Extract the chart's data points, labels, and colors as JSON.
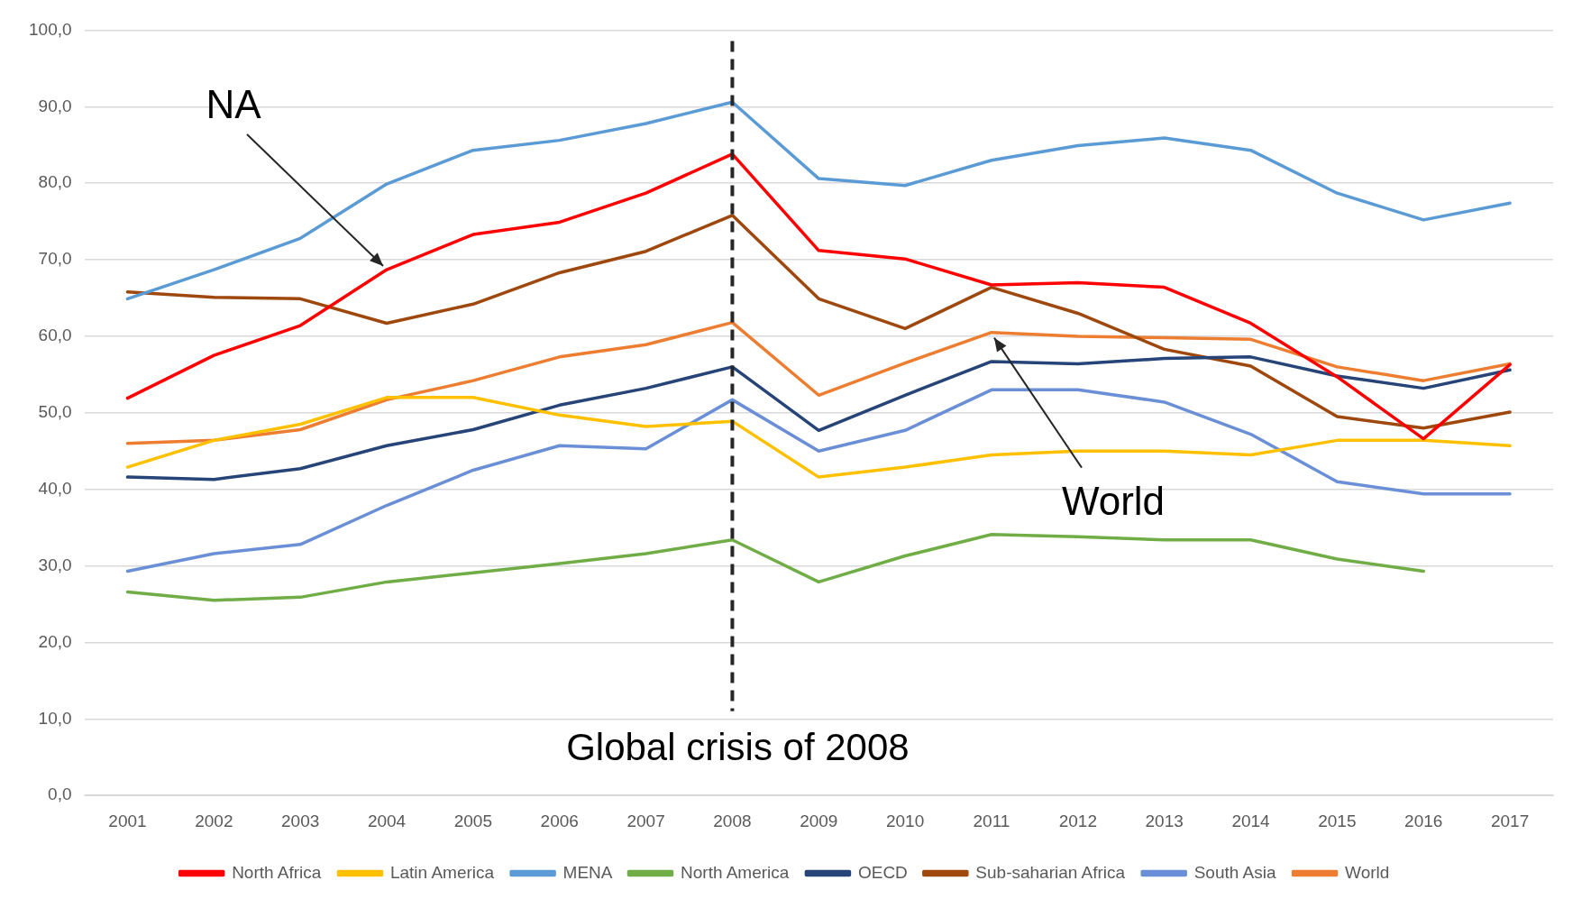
{
  "chart_data": {
    "type": "line",
    "categories": [
      "2001",
      "2002",
      "2003",
      "2004",
      "2005",
      "2006",
      "2007",
      "2008",
      "2009",
      "2010",
      "2011",
      "2012",
      "2013",
      "2014",
      "2015",
      "2016",
      "2017"
    ],
    "series": [
      {
        "name": "North Africa",
        "color": "#ff0000",
        "values": [
          51.9,
          57.5,
          61.4,
          68.7,
          73.3,
          74.9,
          78.7,
          83.8,
          71.2,
          70.1,
          66.7,
          67.0,
          66.4,
          61.7,
          54.7,
          46.6,
          56.3
        ]
      },
      {
        "name": "Latin America",
        "color": "#ffc000",
        "values": [
          42.9,
          46.4,
          48.5,
          52.0,
          52.0,
          49.7,
          48.2,
          48.9,
          41.6,
          42.9,
          44.5,
          45.0,
          45.0,
          44.5,
          46.4,
          46.4,
          45.7
        ]
      },
      {
        "name": "MENA",
        "color": "#5b9bd5",
        "values": [
          64.9,
          68.7,
          72.8,
          79.9,
          84.3,
          85.6,
          87.8,
          90.6,
          80.6,
          79.7,
          83.0,
          84.9,
          85.9,
          84.3,
          78.7,
          75.2,
          77.4
        ]
      },
      {
        "name": "North America",
        "color": "#70ad47",
        "values": [
          26.6,
          25.5,
          25.9,
          27.9,
          29.1,
          30.3,
          31.6,
          33.4,
          27.9,
          31.3,
          34.1,
          33.8,
          33.4,
          33.4,
          30.9,
          29.3,
          null
        ]
      },
      {
        "name": "OECD",
        "color": "#264478",
        "values": [
          41.6,
          41.3,
          42.7,
          45.7,
          47.8,
          51.0,
          53.2,
          56.0,
          47.7,
          52.3,
          56.7,
          56.4,
          57.1,
          57.3,
          54.8,
          53.2,
          55.6
        ]
      },
      {
        "name": "Sub-saharian Africa",
        "color": "#9e480e",
        "values": [
          65.8,
          65.1,
          64.9,
          61.7,
          64.2,
          68.3,
          71.1,
          75.8,
          64.9,
          61.0,
          66.4,
          63.0,
          58.3,
          56.1,
          49.5,
          48.0,
          50.1
        ]
      },
      {
        "name": "South Asia",
        "color": "#6a8fd6",
        "values": [
          29.3,
          31.6,
          32.8,
          37.9,
          42.5,
          45.7,
          45.3,
          51.7,
          45.0,
          47.7,
          53.0,
          53.0,
          51.4,
          47.2,
          41.0,
          39.4,
          39.4
        ]
      },
      {
        "name": "World",
        "color": "#ed7d31",
        "values": [
          46.0,
          46.4,
          47.8,
          51.7,
          54.2,
          57.3,
          58.9,
          61.8,
          52.3,
          56.5,
          60.5,
          60.0,
          59.8,
          59.6,
          56.0,
          54.2,
          56.4
        ]
      }
    ],
    "ylim": [
      0,
      100
    ],
    "yticks": [
      {
        "value": 0,
        "label": "0,0"
      },
      {
        "value": 10,
        "label": "10,0"
      },
      {
        "value": 20,
        "label": "20,0"
      },
      {
        "value": 30,
        "label": "30,0"
      },
      {
        "value": 40,
        "label": "40,0"
      },
      {
        "value": 50,
        "label": "50,0"
      },
      {
        "value": 60,
        "label": "60,0"
      },
      {
        "value": 70,
        "label": "70,0"
      },
      {
        "value": 80,
        "label": "80,0"
      },
      {
        "value": 90,
        "label": "90,0"
      },
      {
        "value": 100,
        "label": "100,0"
      }
    ],
    "ref_lines": [
      {
        "axis": "x",
        "value": "2008",
        "label": "Global crisis of 2008",
        "color": "#262626",
        "line_style": "dashed"
      }
    ],
    "annotations": [
      {
        "text": "NA",
        "x": "2004",
        "y": 68.7
      },
      {
        "text": "World",
        "x": "2011",
        "y": 60.5
      }
    ],
    "grid": "y",
    "legend": "bottom",
    "marker": "none",
    "line_style": "solid"
  }
}
